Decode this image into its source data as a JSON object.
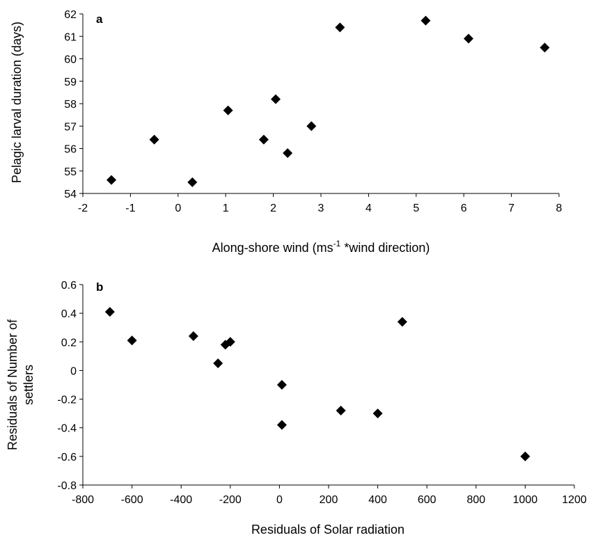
{
  "chart_data": [
    {
      "type": "scatter",
      "panel_label": "a",
      "xlabel": "Along-shore wind (ms",
      "xlabel_sup": "-1",
      "xlabel_suffix": " *wind direction)",
      "ylabel": "Pelagic larval duration (days)",
      "xlim": [
        -2,
        8
      ],
      "ylim": [
        54,
        62
      ],
      "xticks": [
        "-2",
        "-1",
        "0",
        "1",
        "2",
        "3",
        "4",
        "5",
        "6",
        "7",
        "8"
      ],
      "yticks": [
        "54",
        "55",
        "56",
        "57",
        "58",
        "59",
        "60",
        "61",
        "62"
      ],
      "grid": false,
      "marker": "diamond",
      "color": "#000000",
      "points": [
        {
          "x": -1.4,
          "y": 54.6
        },
        {
          "x": -0.5,
          "y": 56.4
        },
        {
          "x": 0.3,
          "y": 54.5
        },
        {
          "x": 1.05,
          "y": 57.7
        },
        {
          "x": 1.8,
          "y": 56.4
        },
        {
          "x": 2.05,
          "y": 58.2
        },
        {
          "x": 2.3,
          "y": 55.8
        },
        {
          "x": 2.8,
          "y": 57.0
        },
        {
          "x": 3.4,
          "y": 61.4
        },
        {
          "x": 5.2,
          "y": 61.7
        },
        {
          "x": 6.1,
          "y": 60.9
        },
        {
          "x": 7.7,
          "y": 60.5
        }
      ]
    },
    {
      "type": "scatter",
      "panel_label": "b",
      "xlabel": "Residuals of Solar radiation",
      "ylabel_line1": "Residuals of Number of",
      "ylabel_line2": "settlers",
      "xlim": [
        -800,
        1200
      ],
      "ylim": [
        -0.8,
        0.6
      ],
      "xticks": [
        "-800",
        "-600",
        "-400",
        "-200",
        "0",
        "200",
        "400",
        "600",
        "800",
        "1000",
        "1200"
      ],
      "yticks": [
        "-0.8",
        "-0.6",
        "-0.4",
        "-0.2",
        "0",
        "0.2",
        "0.4",
        "0.6"
      ],
      "grid": false,
      "marker": "diamond",
      "color": "#000000",
      "points": [
        {
          "x": -690,
          "y": 0.41
        },
        {
          "x": -600,
          "y": 0.21
        },
        {
          "x": -350,
          "y": 0.24
        },
        {
          "x": -250,
          "y": 0.05
        },
        {
          "x": -220,
          "y": 0.18
        },
        {
          "x": -200,
          "y": 0.2
        },
        {
          "x": 10,
          "y": -0.1
        },
        {
          "x": 10,
          "y": -0.38
        },
        {
          "x": 250,
          "y": -0.28
        },
        {
          "x": 400,
          "y": -0.3
        },
        {
          "x": 500,
          "y": 0.34
        },
        {
          "x": 1000,
          "y": -0.6
        }
      ]
    }
  ]
}
